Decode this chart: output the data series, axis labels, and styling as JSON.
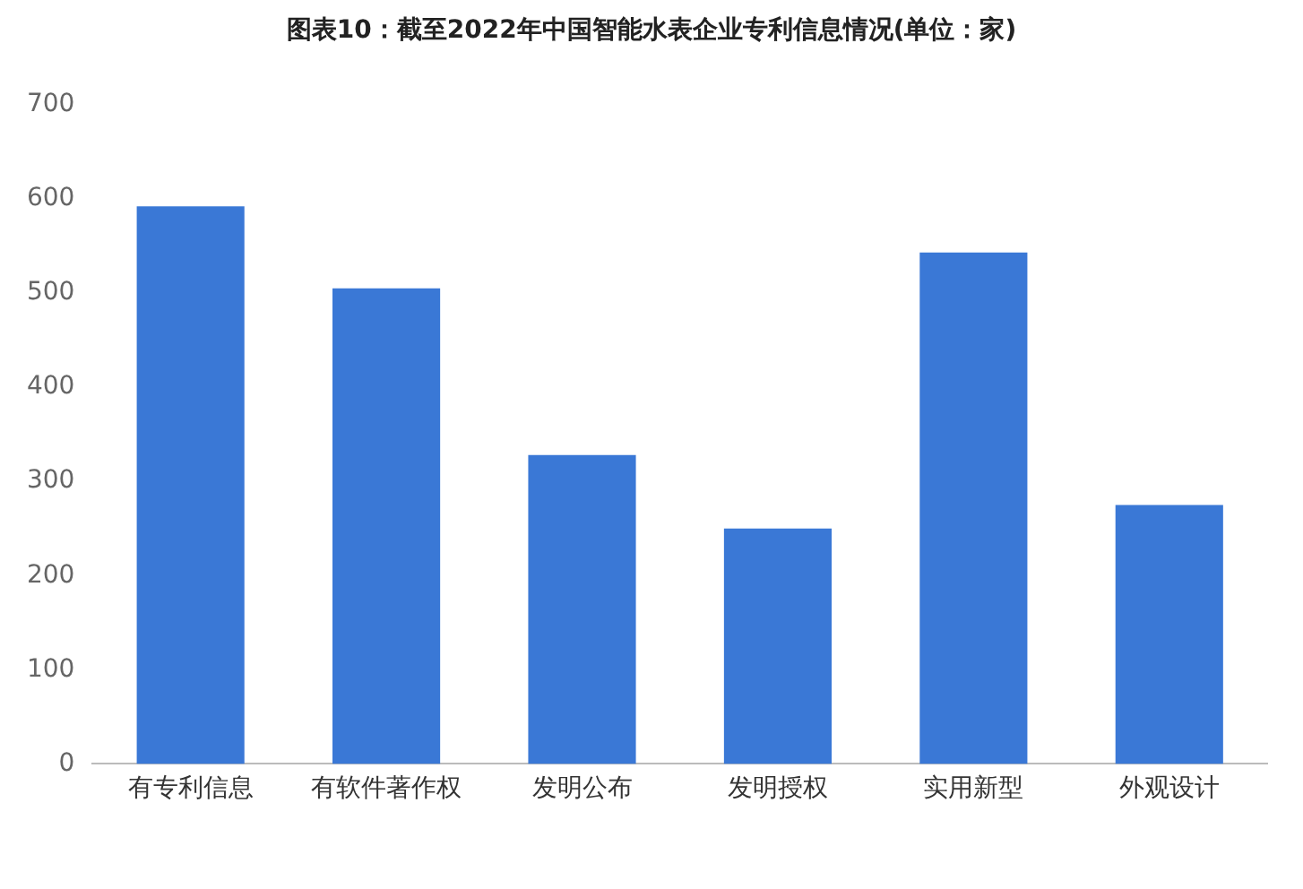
{
  "chart_data": {
    "type": "bar",
    "title": "图表10：截至2022年中国智能水表企业专利信息情况(单位：家)",
    "categories": [
      "有专利信息",
      "有软件著作权",
      "发明公布",
      "发明授权",
      "实用新型",
      "外观设计"
    ],
    "values": [
      592,
      505,
      328,
      250,
      543,
      275
    ],
    "color": "#3a78d6",
    "ylim": [
      0,
      700
    ],
    "yticks": [
      0,
      100,
      200,
      300,
      400,
      500,
      600,
      700
    ],
    "grid": false,
    "legend": false
  }
}
